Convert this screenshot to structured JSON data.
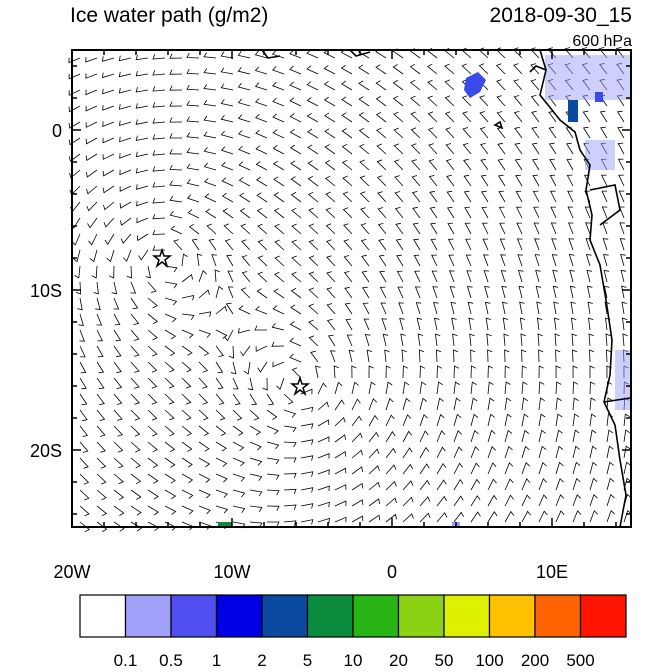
{
  "header": {
    "title": "Ice water path (g/m2)",
    "time": "2018-09-30_15",
    "level": "600 hPa"
  },
  "x_axis": {
    "labels": [
      "20W",
      "10W",
      "0",
      "10E"
    ]
  },
  "y_axis": {
    "labels": [
      "0",
      "10S",
      "20S"
    ]
  },
  "colorbar": {
    "colors": [
      "#ffffff",
      "#a0a0f8",
      "#5050f0",
      "#0000e6",
      "#0a4aa0",
      "#0a8c3c",
      "#28b414",
      "#8cd214",
      "#dcf000",
      "#ffc000",
      "#ff6400",
      "#ff1400"
    ],
    "labels": [
      "0.1",
      "0.5",
      "1",
      "2",
      "5",
      "10",
      "20",
      "50",
      "100",
      "200",
      "500"
    ]
  }
}
